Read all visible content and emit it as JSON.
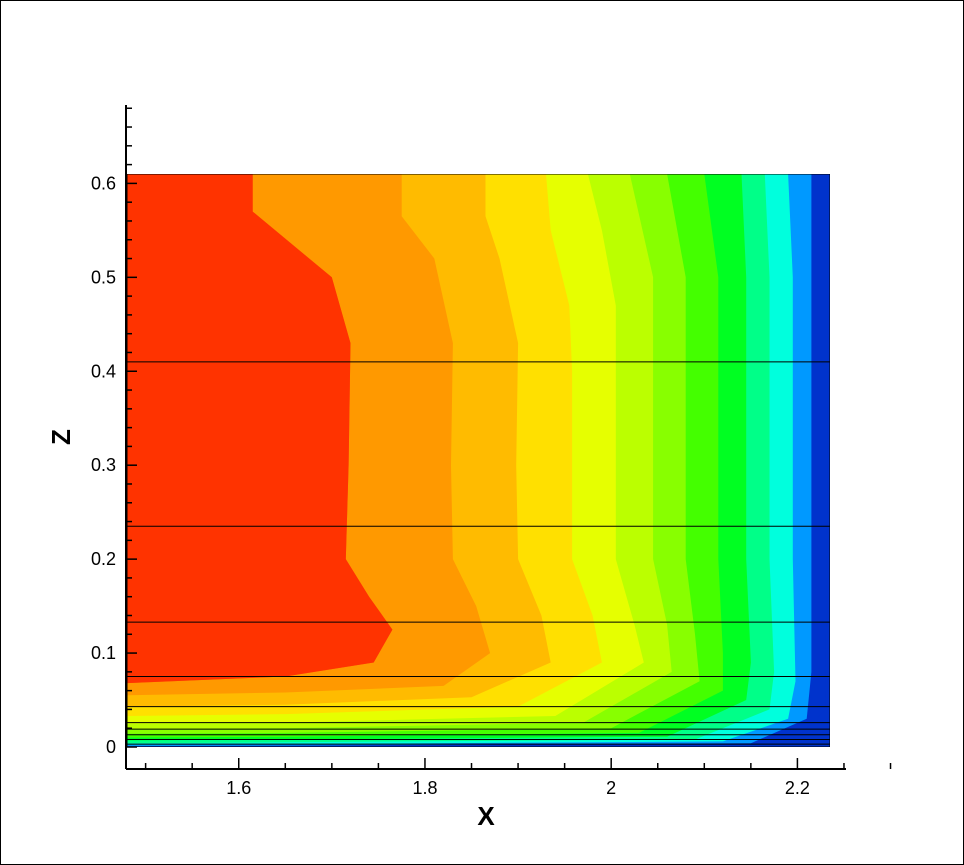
{
  "chart_data": {
    "type": "heatmap",
    "subtype": "filled-contour",
    "title": "",
    "xlabel": "X",
    "ylabel": "Z",
    "xlim": [
      1.48,
      2.235
    ],
    "ylim": [
      0,
      0.61
    ],
    "x_ticks": [
      "1.6",
      "1.8",
      "2",
      "2.2"
    ],
    "y_ticks": [
      "0",
      "0.1",
      "0.2",
      "0.3",
      "0.4",
      "0.5",
      "0.6"
    ],
    "grid_lines_z": [
      0.003,
      0.008,
      0.013,
      0.019,
      0.026,
      0.043,
      0.075,
      0.133,
      0.235,
      0.41
    ],
    "colormap": [
      "#ff3300",
      "#ff6600",
      "#ff9900",
      "#ffbb00",
      "#ffe000",
      "#e6ff00",
      "#bbff00",
      "#88ff00",
      "#44ff00",
      "#00ff22",
      "#00ff88",
      "#00ffdd",
      "#0099ff",
      "#0033cc"
    ],
    "contour_boundaries": [
      {
        "level": 1,
        "color": "#ff3300",
        "points": [
          [
            1.615,
            0.61
          ],
          [
            1.615,
            0.57
          ],
          [
            1.7,
            0.5
          ],
          [
            1.72,
            0.43
          ],
          [
            1.718,
            0.3
          ],
          [
            1.715,
            0.2
          ],
          [
            1.74,
            0.16
          ],
          [
            1.765,
            0.125
          ],
          [
            1.745,
            0.09
          ],
          [
            1.65,
            0.075
          ],
          [
            1.48,
            0.068
          ]
        ]
      },
      {
        "level": 2,
        "color": "#ff6600",
        "points": [
          [
            1.775,
            0.61
          ],
          [
            1.775,
            0.565
          ],
          [
            1.81,
            0.52
          ],
          [
            1.83,
            0.43
          ],
          [
            1.828,
            0.3
          ],
          [
            1.83,
            0.2
          ],
          [
            1.855,
            0.15
          ],
          [
            1.87,
            0.1
          ],
          [
            1.82,
            0.065
          ],
          [
            1.65,
            0.058
          ],
          [
            1.48,
            0.055
          ]
        ]
      },
      {
        "level": 3,
        "color": "#ff9900",
        "points": [
          [
            1.865,
            0.61
          ],
          [
            1.865,
            0.565
          ],
          [
            1.88,
            0.52
          ],
          [
            1.9,
            0.43
          ],
          [
            1.898,
            0.3
          ],
          [
            1.9,
            0.2
          ],
          [
            1.925,
            0.14
          ],
          [
            1.935,
            0.09
          ],
          [
            1.85,
            0.053
          ],
          [
            1.65,
            0.045
          ],
          [
            1.48,
            0.043
          ]
        ]
      },
      {
        "level": 4,
        "color": "#ffbb00",
        "points": [
          [
            1.93,
            0.61
          ],
          [
            1.935,
            0.55
          ],
          [
            1.955,
            0.47
          ],
          [
            1.958,
            0.4
          ],
          [
            1.958,
            0.2
          ],
          [
            1.98,
            0.14
          ],
          [
            1.99,
            0.09
          ],
          [
            1.9,
            0.043
          ],
          [
            1.65,
            0.035
          ],
          [
            1.48,
            0.033
          ]
        ]
      },
      {
        "level": 5,
        "color": "#ffe000",
        "points": [
          [
            1.975,
            0.61
          ],
          [
            1.99,
            0.55
          ],
          [
            2.005,
            0.47
          ],
          [
            2.005,
            0.2
          ],
          [
            2.025,
            0.13
          ],
          [
            2.035,
            0.09
          ],
          [
            1.94,
            0.033
          ],
          [
            1.65,
            0.026
          ],
          [
            1.48,
            0.025
          ]
        ]
      },
      {
        "level": 6,
        "color": "#e6ff00",
        "points": [
          [
            2.02,
            0.61
          ],
          [
            2.045,
            0.5
          ],
          [
            2.045,
            0.2
          ],
          [
            2.06,
            0.13
          ],
          [
            2.065,
            0.08
          ],
          [
            1.97,
            0.026
          ],
          [
            1.65,
            0.02
          ],
          [
            1.48,
            0.019
          ]
        ]
      },
      {
        "level": 7,
        "color": "#bbff00",
        "points": [
          [
            2.06,
            0.61
          ],
          [
            2.08,
            0.5
          ],
          [
            2.08,
            0.2
          ],
          [
            2.09,
            0.12
          ],
          [
            2.095,
            0.07
          ],
          [
            2.0,
            0.02
          ],
          [
            1.65,
            0.015
          ],
          [
            1.48,
            0.014
          ]
        ]
      },
      {
        "level": 8,
        "color": "#88ff00",
        "points": [
          [
            2.1,
            0.61
          ],
          [
            2.115,
            0.5
          ],
          [
            2.115,
            0.2
          ],
          [
            2.12,
            0.1
          ],
          [
            2.12,
            0.06
          ],
          [
            2.03,
            0.015
          ],
          [
            1.65,
            0.011
          ],
          [
            1.48,
            0.01
          ]
        ]
      },
      {
        "level": 9,
        "color": "#44ff00",
        "points": [
          [
            2.14,
            0.61
          ],
          [
            2.145,
            0.5
          ],
          [
            2.145,
            0.2
          ],
          [
            2.15,
            0.09
          ],
          [
            2.145,
            0.05
          ],
          [
            2.06,
            0.011
          ],
          [
            1.65,
            0.008
          ],
          [
            1.48,
            0.007
          ]
        ]
      },
      {
        "level": 10,
        "color": "#00ff22",
        "points": [
          [
            2.165,
            0.61
          ],
          [
            2.17,
            0.5
          ],
          [
            2.17,
            0.2
          ],
          [
            2.175,
            0.08
          ],
          [
            2.17,
            0.04
          ],
          [
            2.09,
            0.008
          ],
          [
            1.65,
            0.005
          ],
          [
            1.48,
            0.004
          ]
        ]
      },
      {
        "level": 11,
        "color": "#00ff88",
        "points": [
          [
            2.19,
            0.61
          ],
          [
            2.195,
            0.5
          ],
          [
            2.195,
            0.2
          ],
          [
            2.198,
            0.07
          ],
          [
            2.19,
            0.03
          ],
          [
            2.12,
            0.006
          ],
          [
            1.65,
            0.003
          ],
          [
            1.48,
            0.0025
          ]
        ]
      },
      {
        "level": 12,
        "color": "#00ffdd",
        "points": [
          [
            2.215,
            0.61
          ],
          [
            2.215,
            0.3
          ],
          [
            2.215,
            0.08
          ],
          [
            2.21,
            0.03
          ],
          [
            2.15,
            0.004
          ],
          [
            1.65,
            0.0015
          ],
          [
            1.48,
            0.001
          ]
        ]
      },
      {
        "level": 13,
        "color": "#0099ff",
        "points": [
          [
            2.235,
            0.61
          ],
          [
            2.23,
            0.04
          ],
          [
            2.2,
            0.01
          ],
          [
            2.1,
            0.003
          ],
          [
            1.65,
            0.0008
          ],
          [
            1.48,
            0.0005
          ]
        ]
      }
    ]
  }
}
